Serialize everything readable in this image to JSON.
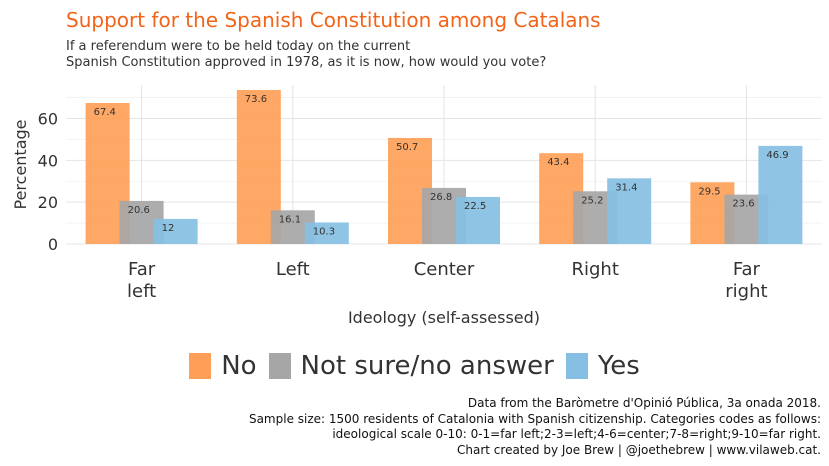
{
  "title": "Support for the Spanish Constitution among Catalans",
  "subtitle": "If a referendum were to be held today on the current\nSpanish Constitution approved in 1978, as it is now, how would you vote?",
  "caption": "Data from the Baròmetre d'Opinió Pública, 3a onada 2018.\nSample size: 1500 residents of Catalonia with Spanish citizenship. Categories codes as follows:\nideological scale 0-10: 0-1=far left;2-3=left;4-6=center;7-8=right;9-10=far right.\nChart created by Joe Brew | @joethebrew | www.vilaweb.cat.",
  "chart_data": {
    "type": "bar",
    "title": "Support for the Spanish Constitution among Catalans",
    "subtitle": "If a referendum were to be held today on the current Spanish Constitution approved in 1978, as it is now, how would you vote?",
    "xlabel": "Ideology (self-assessed)",
    "ylabel": "Percentage",
    "categories": [
      "Far\nleft",
      "Left",
      "Center",
      "Right",
      "Far\nright"
    ],
    "series": [
      {
        "name": "No",
        "color": "#ff9f57",
        "values": [
          67.4,
          73.6,
          50.7,
          43.4,
          29.5
        ]
      },
      {
        "name": "Not sure/no answer",
        "color": "#a6a6a6",
        "values": [
          20.6,
          16.1,
          26.8,
          25.2,
          23.6
        ]
      },
      {
        "name": "Yes",
        "color": "#86bfe3",
        "values": [
          12,
          10.3,
          22.5,
          31.4,
          46.9
        ]
      }
    ],
    "yticks": [
      0,
      20,
      40,
      60
    ],
    "ylim": [
      0,
      76
    ],
    "grid": true,
    "legend_position": "bottom"
  }
}
